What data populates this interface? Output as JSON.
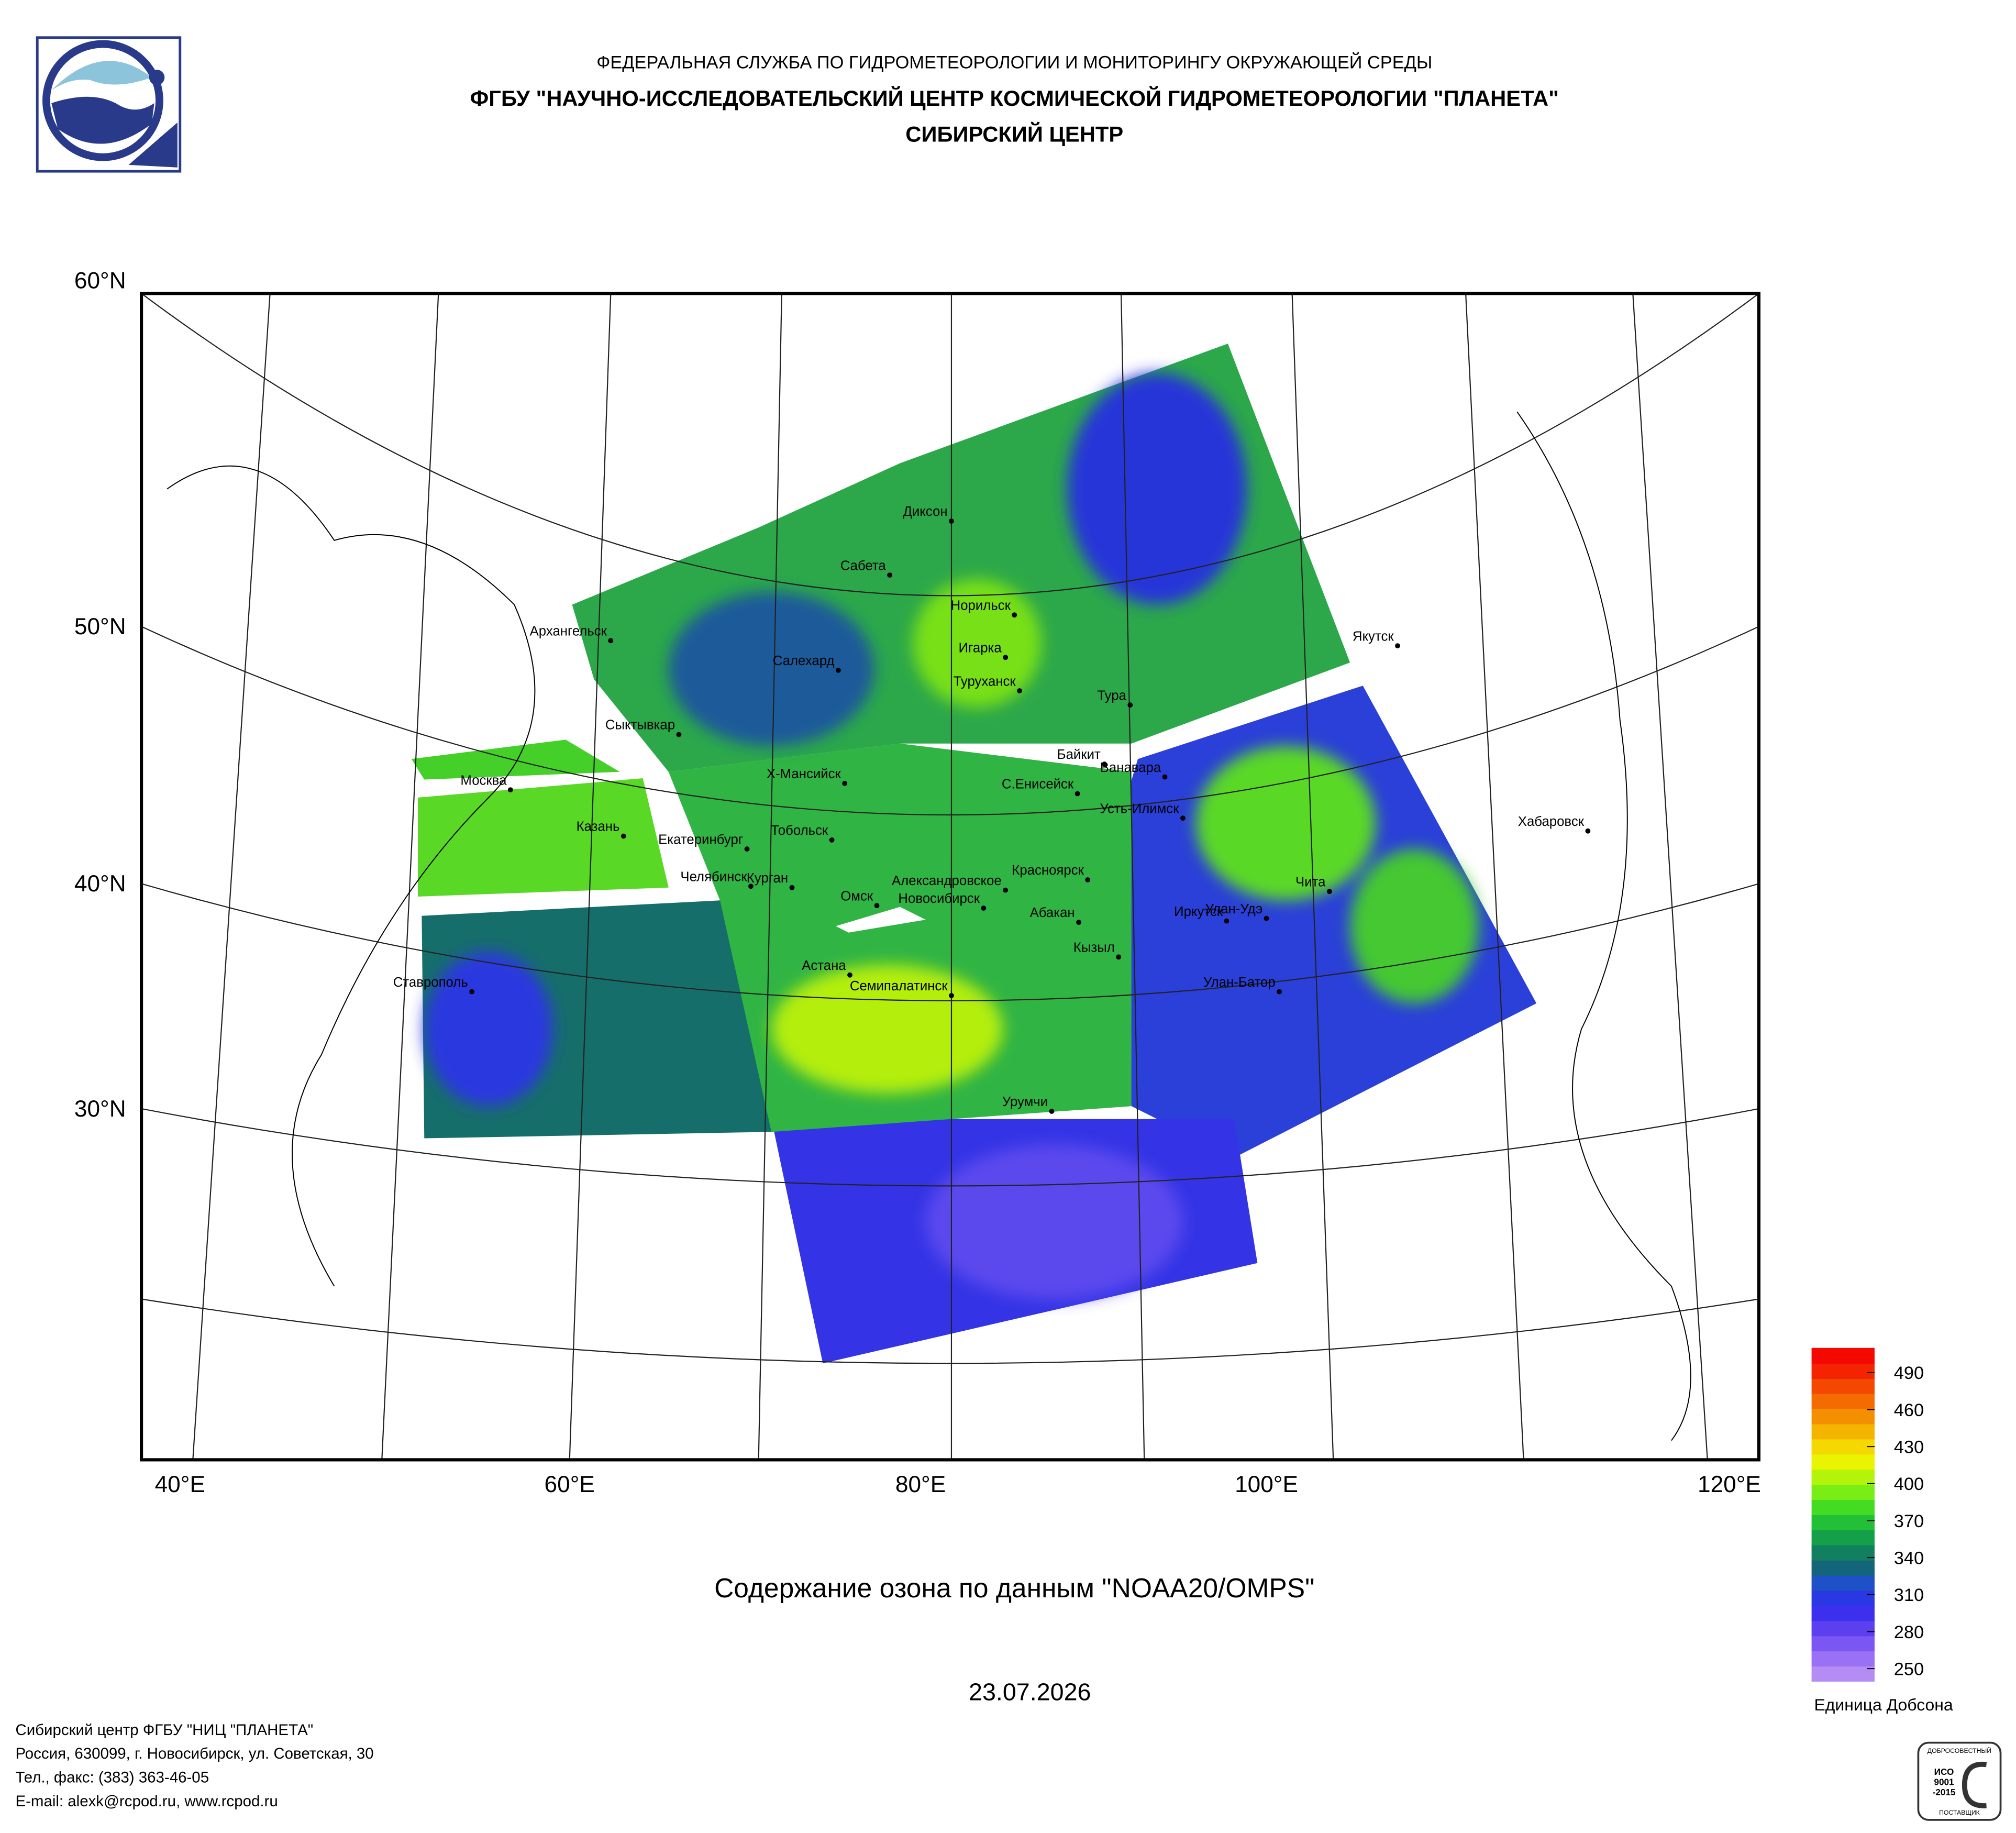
{
  "header": {
    "agency": "ФЕДЕРАЛЬНАЯ СЛУЖБА ПО ГИДРОМЕТЕОРОЛОГИИ И МОНИТОРИНГУ ОКРУЖАЮЩЕЙ СРЕДЫ",
    "institute": "ФГБУ \"НАУЧНО-ИССЛЕДОВАТЕЛЬСКИЙ ЦЕНТР КОСМИЧЕСКОЙ ГИДРОМЕТЕОРОЛОГИИ \"ПЛАНЕТА\"",
    "center": "СИБИРСКИЙ ЦЕНТР"
  },
  "map": {
    "title": "Содержание озона по данным \"NOAA20/OMPS\"",
    "date": "23.07.2026",
    "lat_labels": [
      "60°N",
      "50°N",
      "40°N",
      "30°N"
    ],
    "lon_labels": [
      "40°E",
      "60°E",
      "80°E",
      "100°E",
      "120°E"
    ],
    "cities": [
      "Диксон",
      "Сабета",
      "Норильск",
      "Архангельск",
      "Салехард",
      "Игарка",
      "Туруханск",
      "Тура",
      "Якутск",
      "Сыктывкар",
      "Байкит",
      "Ванавара",
      "Москва",
      "Х-Мансийск",
      "С.Енисейск",
      "Усть-Илимск",
      "Казань",
      "Тобольск",
      "Екатеринбург",
      "Хабаровск",
      "Чита",
      "Челябинск",
      "Курган",
      "Красноярск",
      "Александровское",
      "Омск",
      "Новосибирск",
      "Улан-Удэ",
      "Абакан",
      "Иркутск",
      "Кызыл",
      "Астана",
      "Улан-Батор",
      "Семипалатинск",
      "Ставрополь",
      "Урумчи"
    ]
  },
  "colorbar": {
    "unit": "Единица Добсона",
    "range": [
      240,
      510
    ],
    "ticks": [
      250,
      280,
      310,
      340,
      370,
      400,
      430,
      460,
      490
    ],
    "colors": [
      "#b48cf4",
      "#9a70f4",
      "#7c56f2",
      "#5c40f0",
      "#3c30ee",
      "#2a38e4",
      "#1e50c8",
      "#13657a",
      "#128060",
      "#14a048",
      "#22c036",
      "#44dc22",
      "#78ee14",
      "#b4f40a",
      "#e8f400",
      "#f4d800",
      "#f4b400",
      "#f49000",
      "#f46c00",
      "#f44800",
      "#f42400",
      "#f40800"
    ]
  },
  "footer": {
    "lines": [
      "Сибирский центр ФГБУ \"НИЦ \"ПЛАНЕТА\"",
      "Россия, 630099, г. Новосибирск, ул. Советская, 30",
      "Тел., факс: (383) 363-46-05",
      "E-mail: alexk@rcpod.ru, www.rcpod.ru"
    ]
  },
  "badge": {
    "top": "ДОБРОСОВЕСТНЫЙ",
    "standard": "ИСО",
    "number": "9001",
    "year": "-2015",
    "bottom": "ПОСТАВЩИК"
  }
}
